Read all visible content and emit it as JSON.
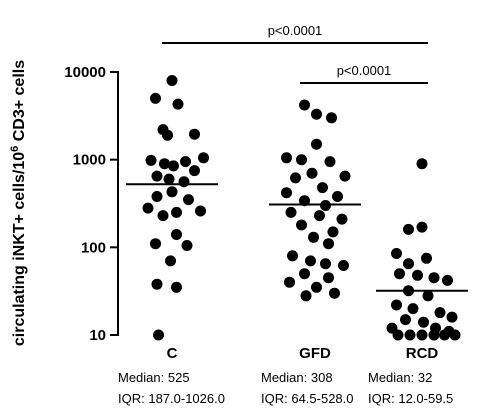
{
  "chart_data": {
    "type": "scatter",
    "ylabel": {
      "main": "circulating iNKT+ cells/10",
      "sup": "6",
      "tail": " CD3+ cells"
    },
    "yscale": "log",
    "ylim": [
      10,
      10000
    ],
    "yticks": [
      {
        "value": 10,
        "label": "10"
      },
      {
        "value": 100,
        "label": "100"
      },
      {
        "value": 1000,
        "label": "1000"
      },
      {
        "value": 10000,
        "label": "10000"
      }
    ],
    "categories": [
      "C",
      "GFD",
      "RCD"
    ],
    "groups": [
      {
        "name": "C",
        "median": 525,
        "median_text": "Median: 525",
        "iqr_text": "IQR: 187.0-1026.0",
        "points": [
          {
            "value": 8000,
            "jitter": 0.0
          },
          {
            "value": 5000,
            "jitter": -0.55
          },
          {
            "value": 4300,
            "jitter": 0.2
          },
          {
            "value": 2200,
            "jitter": -0.3
          },
          {
            "value": 1950,
            "jitter": 0.75
          },
          {
            "value": 1900,
            "jitter": -0.15
          },
          {
            "value": 1050,
            "jitter": 1.05
          },
          {
            "value": 980,
            "jitter": -0.7
          },
          {
            "value": 950,
            "jitter": 0.45
          },
          {
            "value": 900,
            "jitter": -0.25
          },
          {
            "value": 850,
            "jitter": 0.05
          },
          {
            "value": 750,
            "jitter": 0.75
          },
          {
            "value": 650,
            "jitter": -0.5
          },
          {
            "value": 600,
            "jitter": -0.1
          },
          {
            "value": 560,
            "jitter": 0.4
          },
          {
            "value": 430,
            "jitter": 0.0
          },
          {
            "value": 380,
            "jitter": -0.5
          },
          {
            "value": 350,
            "jitter": 0.55
          },
          {
            "value": 280,
            "jitter": -0.8
          },
          {
            "value": 260,
            "jitter": 0.95
          },
          {
            "value": 250,
            "jitter": 0.15
          },
          {
            "value": 230,
            "jitter": -0.3
          },
          {
            "value": 140,
            "jitter": 0.15
          },
          {
            "value": 110,
            "jitter": -0.55
          },
          {
            "value": 105,
            "jitter": 0.5
          },
          {
            "value": 70,
            "jitter": -0.05
          },
          {
            "value": 38,
            "jitter": -0.5
          },
          {
            "value": 35,
            "jitter": 0.15
          },
          {
            "value": 10,
            "jitter": -0.45
          }
        ]
      },
      {
        "name": "GFD",
        "median": 308,
        "median_text": "Median: 308",
        "iqr_text": "IQR: 64.5-528.0",
        "points": [
          {
            "value": 4200,
            "jitter": -0.35
          },
          {
            "value": 3300,
            "jitter": 0.05
          },
          {
            "value": 3000,
            "jitter": 0.55
          },
          {
            "value": 1500,
            "jitter": 0.05
          },
          {
            "value": 1050,
            "jitter": -0.95
          },
          {
            "value": 1000,
            "jitter": -0.45
          },
          {
            "value": 950,
            "jitter": 0.5
          },
          {
            "value": 700,
            "jitter": -0.1
          },
          {
            "value": 650,
            "jitter": 1.0
          },
          {
            "value": 620,
            "jitter": -0.65
          },
          {
            "value": 480,
            "jitter": 0.25
          },
          {
            "value": 420,
            "jitter": -0.95
          },
          {
            "value": 380,
            "jitter": 0.75
          },
          {
            "value": 340,
            "jitter": -0.35
          },
          {
            "value": 300,
            "jitter": 0.35
          },
          {
            "value": 250,
            "jitter": -0.8
          },
          {
            "value": 230,
            "jitter": 0.15
          },
          {
            "value": 210,
            "jitter": 0.9
          },
          {
            "value": 180,
            "jitter": -0.45
          },
          {
            "value": 150,
            "jitter": 0.6
          },
          {
            "value": 130,
            "jitter": -0.05
          },
          {
            "value": 110,
            "jitter": 0.45
          },
          {
            "value": 80,
            "jitter": -0.75
          },
          {
            "value": 70,
            "jitter": -0.15
          },
          {
            "value": 65,
            "jitter": 0.35
          },
          {
            "value": 62,
            "jitter": 0.95
          },
          {
            "value": 50,
            "jitter": -0.35
          },
          {
            "value": 45,
            "jitter": 0.45
          },
          {
            "value": 40,
            "jitter": -0.85
          },
          {
            "value": 35,
            "jitter": 0.05
          },
          {
            "value": 30,
            "jitter": 0.65
          },
          {
            "value": 28,
            "jitter": -0.3
          }
        ]
      },
      {
        "name": "RCD",
        "median": 32,
        "median_text": "Median: 32",
        "iqr_text": "IQR: 12.0-59.5",
        "points": [
          {
            "value": 900,
            "jitter": 0.0
          },
          {
            "value": 170,
            "jitter": 0.0
          },
          {
            "value": 160,
            "jitter": -0.45
          },
          {
            "value": 85,
            "jitter": -0.85
          },
          {
            "value": 75,
            "jitter": 0.15
          },
          {
            "value": 65,
            "jitter": -0.45
          },
          {
            "value": 50,
            "jitter": -0.75
          },
          {
            "value": 48,
            "jitter": -0.15
          },
          {
            "value": 45,
            "jitter": 0.4
          },
          {
            "value": 42,
            "jitter": 0.85
          },
          {
            "value": 32,
            "jitter": -0.45
          },
          {
            "value": 28,
            "jitter": 0.2
          },
          {
            "value": 22,
            "jitter": -0.85
          },
          {
            "value": 20,
            "jitter": -0.3
          },
          {
            "value": 18,
            "jitter": 0.6
          },
          {
            "value": 16,
            "jitter": 1.0
          },
          {
            "value": 15,
            "jitter": -0.55
          },
          {
            "value": 14,
            "jitter": 0.05
          },
          {
            "value": 12,
            "jitter": -1.0
          },
          {
            "value": 12,
            "jitter": 0.45
          },
          {
            "value": 11,
            "jitter": 0.9
          },
          {
            "value": 10,
            "jitter": -0.8
          },
          {
            "value": 10,
            "jitter": -0.4
          },
          {
            "value": 10,
            "jitter": 0.0
          },
          {
            "value": 10,
            "jitter": 0.4
          },
          {
            "value": 10,
            "jitter": 0.75
          },
          {
            "value": 10,
            "jitter": 1.1
          }
        ]
      }
    ],
    "comparisons": [
      {
        "from": "C",
        "to": "RCD",
        "label": "p<0.0001",
        "level": 2
      },
      {
        "from": "GFD",
        "to": "RCD",
        "label": "p<0.0001",
        "level": 1
      }
    ]
  }
}
